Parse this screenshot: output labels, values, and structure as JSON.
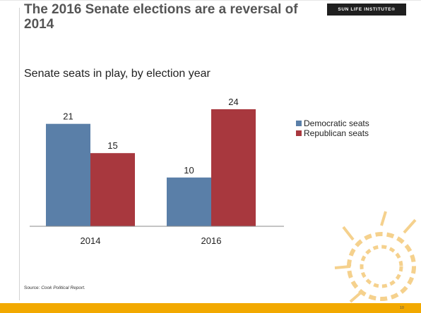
{
  "slide": {
    "title": "The 2016 Senate elections are a reversal of 2014",
    "logo_text": "SUN LIFE INSTITUTE®",
    "subtitle": "Senate seats in play, by election year",
    "source_label": "Source: ",
    "source_name": "Cook Political Report.",
    "page_number": "10"
  },
  "colors": {
    "democratic": "#5a7fa8",
    "republican": "#a8383e",
    "footer": "#f2a900",
    "accent_sun": "#f4c97a"
  },
  "chart_data": {
    "type": "bar",
    "categories": [
      "2014",
      "2016"
    ],
    "series": [
      {
        "name": "Democratic seats",
        "values": [
          21,
          10
        ]
      },
      {
        "name": "Republican seats",
        "values": [
          15,
          24
        ]
      }
    ],
    "ylim": [
      0,
      25
    ],
    "grid": false,
    "legend_position": "right"
  }
}
